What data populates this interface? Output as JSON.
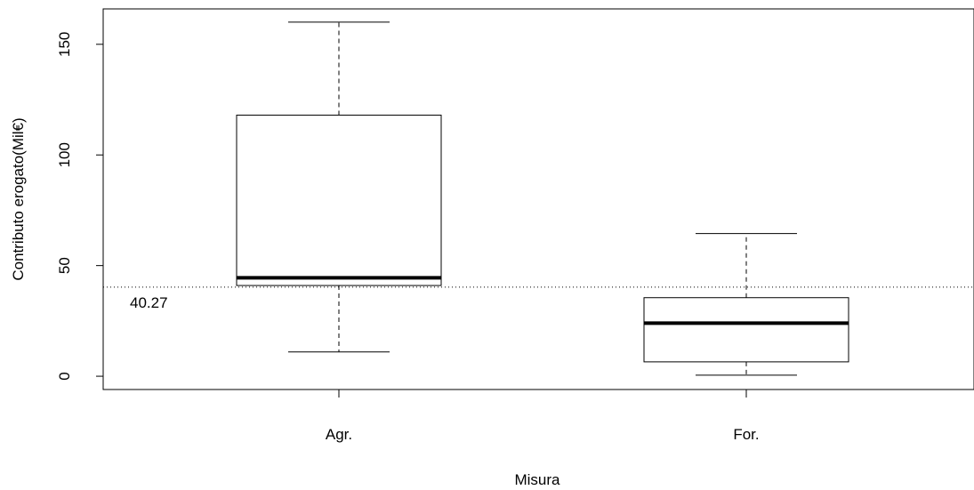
{
  "chart_data": {
    "type": "boxplot",
    "title": "",
    "xlabel": "Misura",
    "ylabel": "Contributo erogato(Mil€)",
    "categories": [
      "Agr.",
      "For."
    ],
    "boxes": [
      {
        "category": "Agr.",
        "whisker_low": 11,
        "q1": 41,
        "median": 44.5,
        "q3": 118,
        "whisker_high": 160
      },
      {
        "category": "For.",
        "whisker_low": 0.5,
        "q1": 6.5,
        "median": 24,
        "q3": 35.5,
        "whisker_high": 64.5
      }
    ],
    "reference_line": {
      "value": 40.27,
      "label": "40.27",
      "style": "dotted"
    },
    "yticks": [
      0,
      50,
      100,
      150
    ],
    "ylim": [
      -6,
      166
    ],
    "grid": false,
    "colors": {
      "box_fill": "#ffffff",
      "stroke": "#000000"
    }
  }
}
